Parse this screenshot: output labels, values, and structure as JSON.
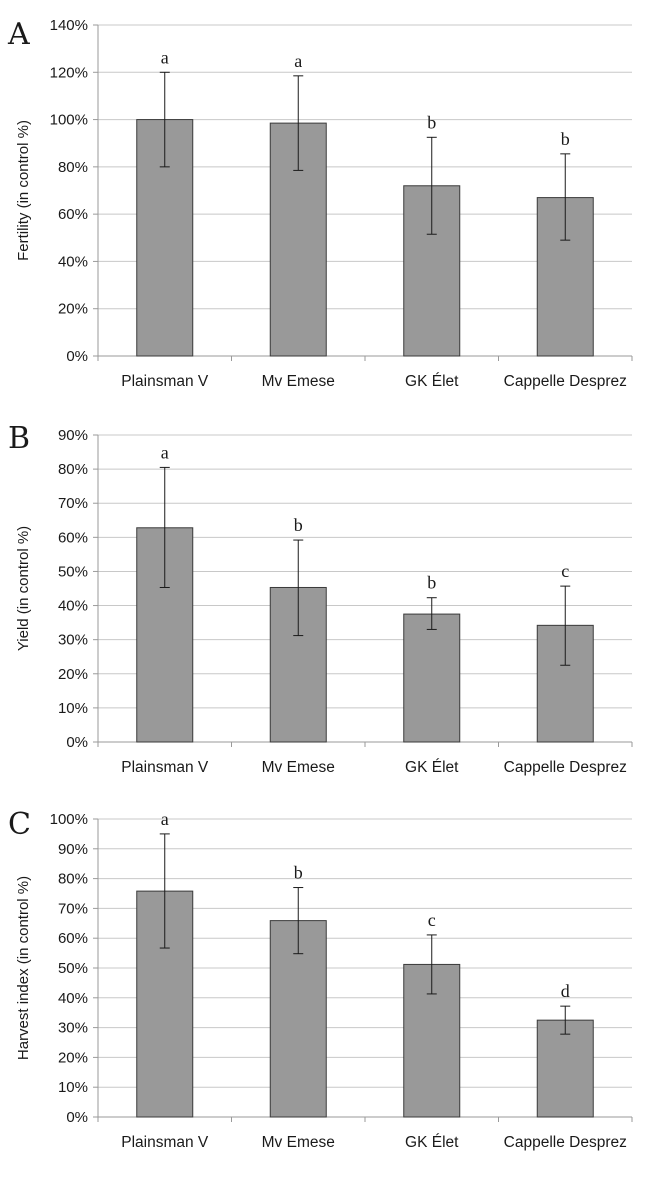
{
  "chart_data": [
    {
      "type": "bar",
      "panel_label": "A",
      "title": "",
      "xlabel": "",
      "ylabel": "Fertility (in control %)",
      "categories": [
        "Plainsman V",
        "Mv Emese",
        "GK Élet",
        "Cappelle Desprez"
      ],
      "values": [
        100,
        98.5,
        72,
        67
      ],
      "error_low": [
        80,
        78.5,
        51.5,
        49
      ],
      "error_high": [
        120,
        118.5,
        92.5,
        85.5
      ],
      "significance": [
        "a",
        "a",
        "b",
        "b"
      ],
      "ylim": [
        0,
        140
      ],
      "yticks": [
        0,
        20,
        40,
        60,
        80,
        100,
        120,
        140
      ],
      "ytick_labels": [
        "0%",
        "20%",
        "40%",
        "60%",
        "80%",
        "100%",
        "120%",
        "140%"
      ],
      "grid": true,
      "bar_color": "#999999"
    },
    {
      "type": "bar",
      "panel_label": "B",
      "title": "",
      "xlabel": "",
      "ylabel": "Yield (in control %)",
      "categories": [
        "Plainsman V",
        "Mv Emese",
        "GK Élet",
        "Cappelle Desprez"
      ],
      "values": [
        62.8,
        45.3,
        37.5,
        34.2
      ],
      "error_low": [
        45.3,
        31.2,
        33,
        22.5
      ],
      "error_high": [
        80.5,
        59.2,
        42.3,
        45.7
      ],
      "significance": [
        "a",
        "b",
        "b",
        "c"
      ],
      "ylim": [
        0,
        90
      ],
      "yticks": [
        0,
        10,
        20,
        30,
        40,
        50,
        60,
        70,
        80,
        90
      ],
      "ytick_labels": [
        "0%",
        "10%",
        "20%",
        "30%",
        "40%",
        "50%",
        "60%",
        "70%",
        "80%",
        "90%"
      ],
      "grid": true,
      "bar_color": "#999999"
    },
    {
      "type": "bar",
      "panel_label": "C",
      "title": "",
      "xlabel": "",
      "ylabel": "Harvest index (in control %)",
      "categories": [
        "Plainsman V",
        "Mv Emese",
        "GK Élet",
        "Cappelle Desprez"
      ],
      "values": [
        75.8,
        65.9,
        51.2,
        32.5
      ],
      "error_low": [
        56.7,
        54.8,
        41.3,
        27.8
      ],
      "error_high": [
        95,
        77,
        61.1,
        37.2
      ],
      "significance": [
        "a",
        "b",
        "c",
        "d"
      ],
      "ylim": [
        0,
        100
      ],
      "yticks": [
        0,
        10,
        20,
        30,
        40,
        50,
        60,
        70,
        80,
        90,
        100
      ],
      "ytick_labels": [
        "0%",
        "10%",
        "20%",
        "30%",
        "40%",
        "50%",
        "60%",
        "70%",
        "80%",
        "90%",
        "100%"
      ],
      "grid": true,
      "bar_color": "#999999"
    }
  ]
}
